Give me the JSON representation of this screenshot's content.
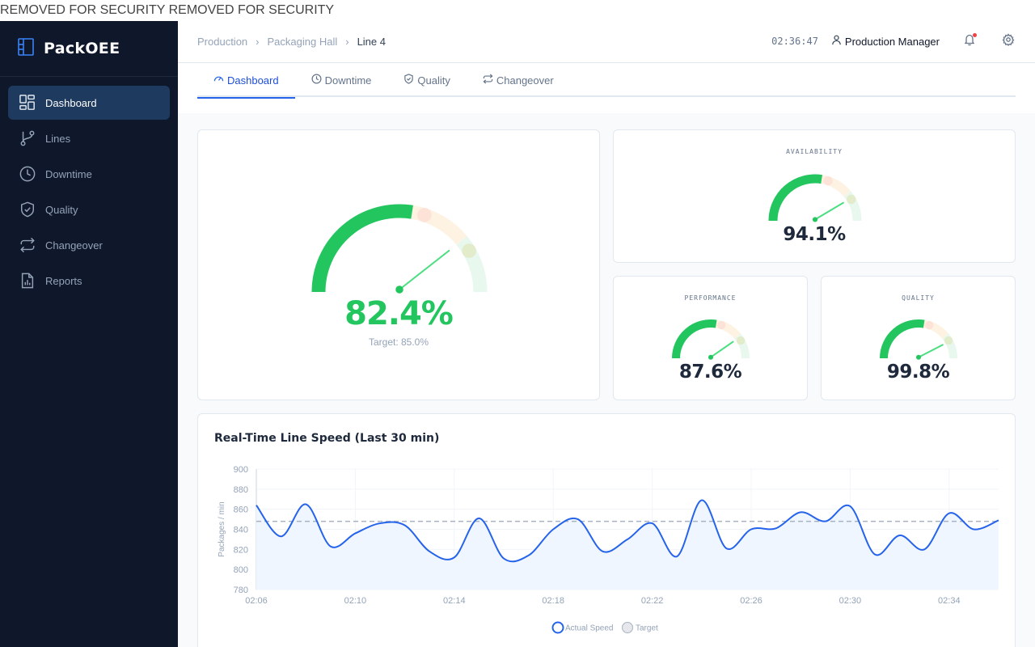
{
  "banner": "REMOVED FOR SECURITY REMOVED FOR SECURITY",
  "app": {
    "name": "PackOEE"
  },
  "sidebar": {
    "items": [
      {
        "label": "Dashboard",
        "icon": "dashboard-icon",
        "active": true
      },
      {
        "label": "Lines",
        "icon": "git-branch-icon"
      },
      {
        "label": "Downtime",
        "icon": "clock-icon"
      },
      {
        "label": "Quality",
        "icon": "shield-check-icon"
      },
      {
        "label": "Changeover",
        "icon": "repeat-icon"
      },
      {
        "label": "Reports",
        "icon": "report-icon"
      }
    ]
  },
  "header": {
    "breadcrumb": [
      "Production",
      "Packaging Hall",
      "Line 4"
    ],
    "clock": "02:36:47",
    "user": "Production Manager"
  },
  "tabs": [
    {
      "label": "Dashboard",
      "active": true
    },
    {
      "label": "Downtime"
    },
    {
      "label": "Quality"
    },
    {
      "label": "Changeover"
    }
  ],
  "oee": {
    "value": "82.4%",
    "target": "Target: 85.0%",
    "fraction": 0.824
  },
  "availability": {
    "label": "AVAILABILITY",
    "value": "94.1%",
    "fraction": 0.941
  },
  "performance": {
    "label": "PERFORMANCE",
    "value": "87.6%",
    "fraction": 0.876
  },
  "quality": {
    "label": "QUALITY",
    "value": "99.8%",
    "fraction": 0.998
  },
  "colors": {
    "accent": "#2563eb",
    "good": "#22c55e",
    "sidebar": "#0f172a"
  },
  "chart_data": {
    "type": "area",
    "title": "Real-Time Line Speed (Last 30 min)",
    "ylabel": "Packages / min",
    "ylim": [
      780,
      900
    ],
    "yticks": [
      780,
      800,
      820,
      840,
      860,
      880,
      900
    ],
    "xticks": [
      "02:06",
      "02:10",
      "02:14",
      "02:18",
      "02:22",
      "02:26",
      "02:30",
      "02:34"
    ],
    "x_minutes": [
      0,
      1,
      2,
      3,
      4,
      5,
      6,
      7,
      8,
      9,
      10,
      11,
      12,
      13,
      14,
      15,
      16,
      17,
      18,
      19,
      20,
      21,
      22,
      23,
      24,
      25,
      26,
      27,
      28,
      29,
      30
    ],
    "series": [
      {
        "name": "Actual Speed",
        "color": "#2563eb",
        "values": [
          864,
          833,
          865,
          823,
          836,
          846,
          844,
          818,
          812,
          851,
          811,
          814,
          840,
          850,
          818,
          830,
          846,
          813,
          869,
          821,
          840,
          841,
          857,
          848,
          863,
          815,
          834,
          820,
          856,
          840,
          849
        ]
      },
      {
        "name": "Target",
        "color": "#94a3b8",
        "constant": 848
      }
    ],
    "grid": true,
    "legend": "bottom-center"
  }
}
